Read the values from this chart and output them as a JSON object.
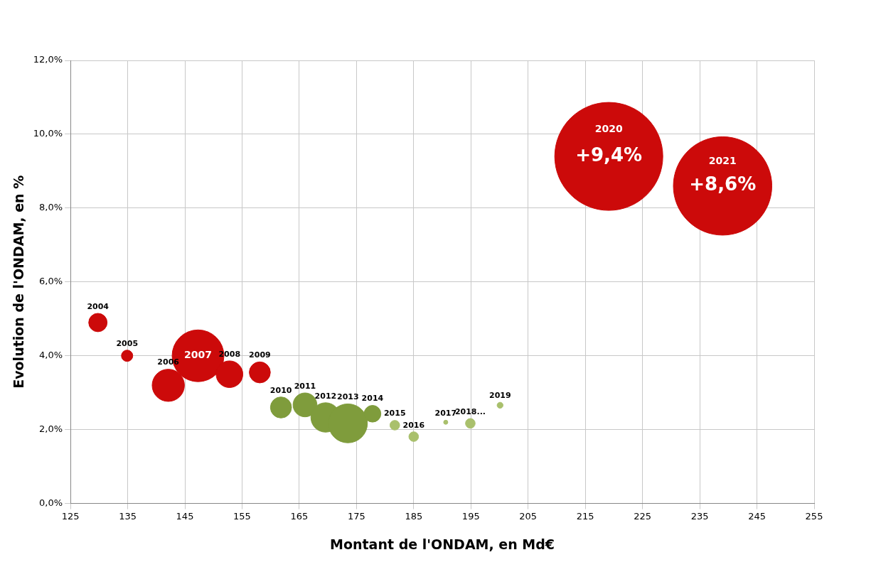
{
  "chart_data": {
    "type": "bubble",
    "xlabel": "Montant de l'ONDAM, en Md€",
    "ylabel": "Evolution de l'ONDAM, en %",
    "x": [
      129.8,
      134.9,
      142.1,
      147.3,
      152.8,
      158.1,
      161.8,
      166.0,
      169.6,
      173.5,
      177.8,
      181.7,
      185.0,
      190.6,
      194.9,
      200.1,
      219.1,
      239.0
    ],
    "values": [
      4.9,
      4.0,
      3.2,
      4.0,
      3.5,
      3.55,
      2.6,
      2.67,
      2.33,
      2.17,
      2.43,
      2.12,
      1.81,
      2.2,
      2.17,
      2.66,
      9.4,
      8.6
    ],
    "sizes": [
      0.029,
      0.011,
      0.089,
      0.23,
      0.061,
      0.038,
      0.038,
      0.049,
      0.074,
      0.13,
      0.024,
      0.008,
      0.008,
      0.0015,
      0.008,
      0.003,
      1,
      0.83
    ],
    "colors": [
      "#cc0a0a",
      "#cc0a0a",
      "#cc0a0a",
      "#cc0a0a",
      "#cc0a0a",
      "#cc0a0a",
      "#7f9c3c",
      "#7f9c3c",
      "#7f9c3c",
      "#7f9c3c",
      "#7f9c3c",
      "#a9c06c",
      "#a9c06c",
      "#a9c06c",
      "#a9c06c",
      "#a9c06c",
      "#cc0a0a",
      "#cc0a0a"
    ],
    "value_labels": [
      null,
      null,
      null,
      null,
      null,
      null,
      null,
      null,
      null,
      null,
      null,
      null,
      null,
      null,
      null,
      null,
      "+9,4%",
      "+8,6%"
    ],
    "annotations": [
      {
        "text": "2004",
        "x": 129.8,
        "y": 4.9
      },
      {
        "text": "2005",
        "x": 134.9,
        "y": 4.0
      },
      {
        "text": "2006",
        "x": 142.1,
        "y": 3.2
      },
      {
        "text": "2007",
        "x": 147.3,
        "y": 4.0
      },
      {
        "text": "2008",
        "x": 152.8,
        "y": 3.5
      },
      {
        "text": "2009",
        "x": 158.1,
        "y": 3.55
      },
      {
        "text": "2010",
        "x": 161.8,
        "y": 2.6
      },
      {
        "text": "2011",
        "x": 166.0,
        "y": 2.67
      },
      {
        "text": "2012",
        "x": 169.6,
        "y": 2.33
      },
      {
        "text": "2013",
        "x": 173.5,
        "y": 2.17
      },
      {
        "text": "2014",
        "x": 177.8,
        "y": 2.43
      },
      {
        "text": "2015",
        "x": 181.7,
        "y": 2.12
      },
      {
        "text": "2016",
        "x": 185.0,
        "y": 1.81
      },
      {
        "text": "2017",
        "x": 190.6,
        "y": 2.2
      },
      {
        "text": "2018...",
        "x": 194.9,
        "y": 2.17
      },
      {
        "text": "2019",
        "x": 200.1,
        "y": 2.66
      },
      {
        "text": "2020",
        "x": 219.1,
        "y": 9.4
      },
      {
        "text": "2021",
        "x": 239.0,
        "y": 8.6
      }
    ],
    "xlim": [
      125,
      255
    ],
    "xticks": [
      125,
      135,
      145,
      155,
      165,
      175,
      185,
      195,
      205,
      215,
      225,
      235,
      245,
      255
    ],
    "ylim": [
      0,
      12
    ],
    "yticks": [
      {
        "value": 0,
        "label": "0,0%"
      },
      {
        "value": 2,
        "label": "2,0%"
      },
      {
        "value": 4,
        "label": "4,0%"
      },
      {
        "value": 6,
        "label": "6,0%"
      },
      {
        "value": 8,
        "label": "8,0%"
      },
      {
        "value": 10,
        "label": "10,0%"
      },
      {
        "value": 12,
        "label": "12,0%"
      }
    ],
    "grid": true,
    "legend": false,
    "marker": "circle"
  }
}
